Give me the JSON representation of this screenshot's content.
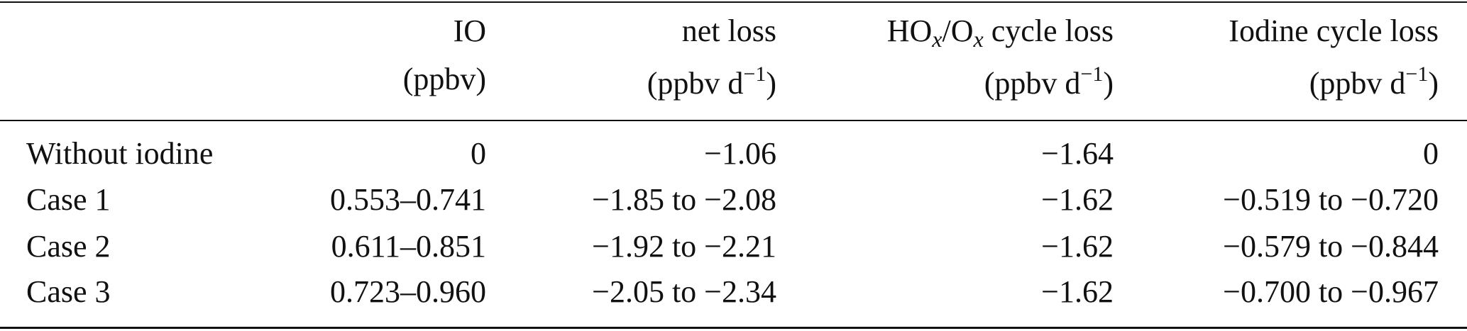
{
  "table": {
    "columns": [
      {
        "name": [
          {
            "text": "IO"
          }
        ],
        "unit": [
          {
            "text": "(ppbv)"
          }
        ]
      },
      {
        "name": [
          {
            "text": "net loss"
          }
        ],
        "unit": [
          {
            "text": "(ppbv d"
          },
          {
            "text": "−1",
            "style": "sup"
          },
          {
            "text": ")"
          }
        ]
      },
      {
        "name": [
          {
            "text": "HO"
          },
          {
            "text": "x",
            "style": "sub"
          },
          {
            "text": "/O"
          },
          {
            "text": "x",
            "style": "sub"
          },
          {
            "text": " cycle loss"
          }
        ],
        "unit": [
          {
            "text": "(ppbv d"
          },
          {
            "text": "−1",
            "style": "sup"
          },
          {
            "text": ")"
          }
        ]
      },
      {
        "name": [
          {
            "text": "Iodine cycle loss"
          }
        ],
        "unit": [
          {
            "text": "(ppbv d"
          },
          {
            "text": "−1",
            "style": "sup"
          },
          {
            "text": ")"
          }
        ]
      }
    ],
    "rows": [
      [
        "Without iodine",
        "0",
        "−1.06",
        "−1.64",
        "0"
      ],
      [
        "Case 1",
        "0.553–0.741",
        "−1.85 to −2.08",
        "−1.62",
        "−0.519 to −0.720"
      ],
      [
        "Case 2",
        "0.611–0.851",
        "−1.92 to −2.21",
        "−1.62",
        "−0.579 to −0.844"
      ],
      [
        "Case 3",
        "0.723–0.960",
        "−2.05 to −2.34",
        "−1.62",
        "−0.700 to −0.967"
      ]
    ]
  }
}
